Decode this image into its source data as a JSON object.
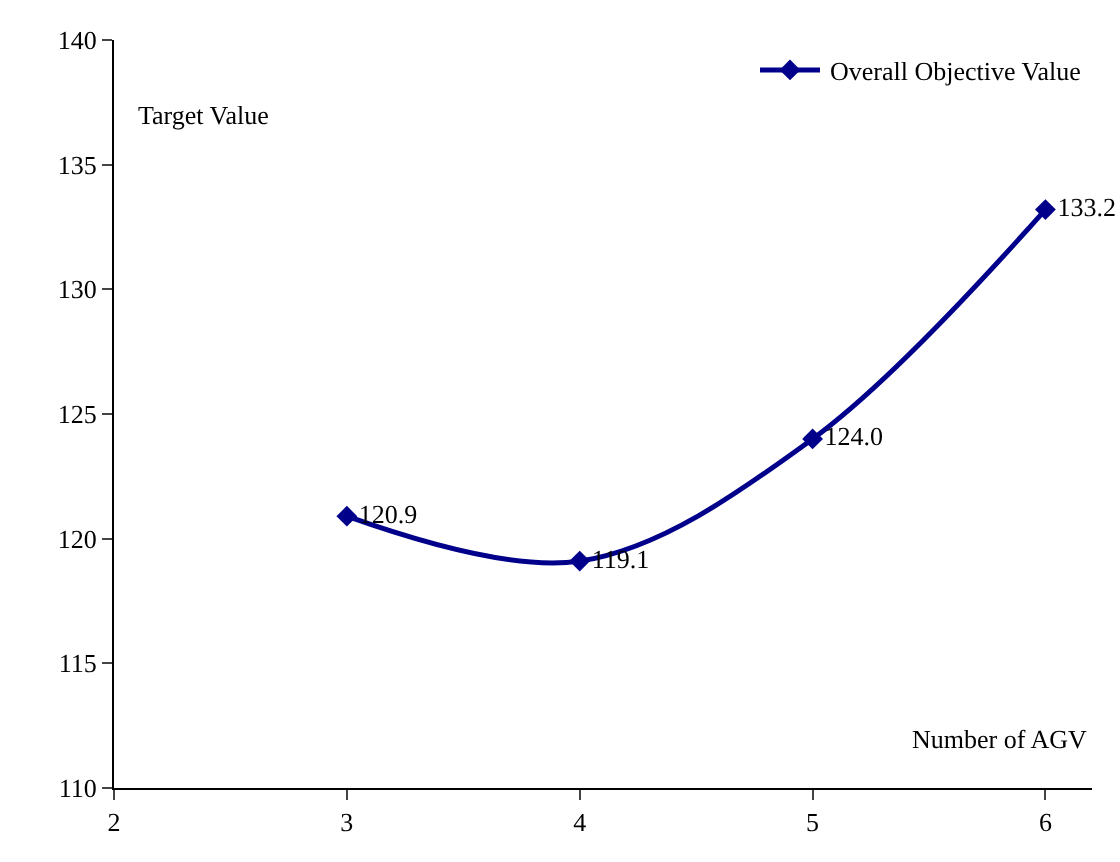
{
  "chart_data": {
    "type": "line",
    "x": [
      3,
      4,
      5,
      6
    ],
    "series": [
      {
        "name": "Overall Objective Value",
        "color": "#00008b",
        "values": [
          120.9,
          119.1,
          124.0,
          133.2
        ],
        "value_labels": [
          "120.9",
          "119.1",
          "124.0",
          "133.2"
        ]
      }
    ],
    "xlabel": "Number of AGV",
    "ylabel": "Target Value",
    "xlim": [
      2,
      6.2
    ],
    "xticks": [
      2,
      3,
      4,
      5,
      6
    ],
    "ylim": [
      110,
      140
    ],
    "yticks": [
      110,
      115,
      120,
      125,
      130,
      135,
      140
    ],
    "marker": "diamond",
    "line_style": "solid",
    "grid": false,
    "legend": "top right"
  }
}
